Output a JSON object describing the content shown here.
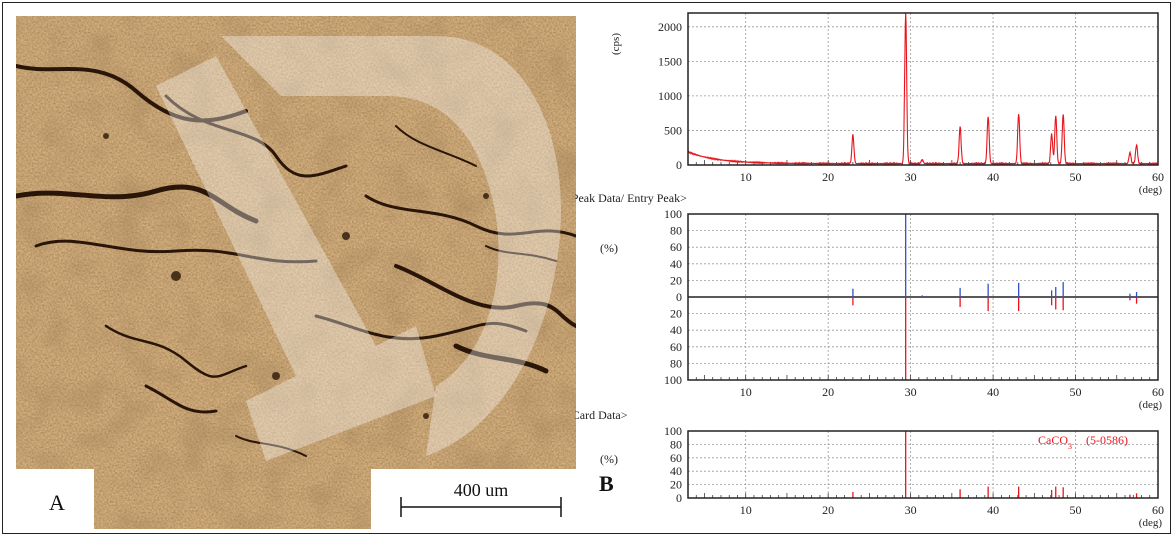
{
  "panel_a": {
    "label": "A",
    "scale_bar_label": "400 um"
  },
  "panel_b": {
    "label": "B"
  },
  "chart_data": [
    {
      "type": "line",
      "ylabel": "(cps)",
      "xlabel": "(deg)",
      "xlim": [
        3,
        60
      ],
      "ylim": [
        0,
        2200
      ],
      "x_ticks": [
        10,
        20,
        30,
        40,
        50,
        60
      ],
      "y_ticks": [
        0,
        500,
        1000,
        1500,
        2000
      ],
      "grid": true,
      "color": "#e8141c",
      "series": [
        {
          "peaks": [
            {
              "x": 23.0,
              "y": 420
            },
            {
              "x": 29.4,
              "y": 2200
            },
            {
              "x": 31.4,
              "y": 60
            },
            {
              "x": 36.0,
              "y": 540
            },
            {
              "x": 39.4,
              "y": 680
            },
            {
              "x": 43.1,
              "y": 720
            },
            {
              "x": 47.1,
              "y": 430
            },
            {
              "x": 47.6,
              "y": 690
            },
            {
              "x": 48.5,
              "y": 720
            },
            {
              "x": 56.6,
              "y": 160
            },
            {
              "x": 57.4,
              "y": 270
            }
          ]
        }
      ]
    },
    {
      "type": "bar",
      "title": "<Peak Data/ Entry Peak>",
      "ylabel": "(%)",
      "xlabel": "(deg)",
      "xlim": [
        3,
        60
      ],
      "ylim": [
        -100,
        100
      ],
      "x_ticks": [
        10,
        20,
        30,
        40,
        50,
        60
      ],
      "y_ticks": [
        100,
        80,
        60,
        40,
        20,
        0,
        20,
        40,
        60,
        80,
        100
      ],
      "grid": true,
      "series": [
        {
          "color": "#3050c8",
          "x": [
            23.0,
            29.4,
            31.4,
            36.0,
            39.4,
            43.1,
            47.1,
            47.6,
            48.5,
            56.6,
            57.4
          ],
          "values": [
            10,
            100,
            2,
            11,
            16,
            17,
            8,
            12,
            18,
            4,
            6
          ]
        },
        {
          "color": "#e8141c",
          "x": [
            23.0,
            29.4,
            36.0,
            39.4,
            43.1,
            47.1,
            47.6,
            48.5,
            56.6,
            57.4
          ],
          "values": [
            -10,
            -100,
            -12,
            -17,
            -17,
            -10,
            -15,
            -16,
            -4,
            -8
          ]
        }
      ]
    },
    {
      "type": "bar",
      "title": "<Card Data>",
      "ylabel": "(%)",
      "xlabel": "(deg)",
      "xlim": [
        3,
        60
      ],
      "ylim": [
        0,
        100
      ],
      "x_ticks": [
        10,
        20,
        30,
        40,
        50,
        60
      ],
      "y_ticks": [
        0,
        20,
        40,
        60,
        80,
        100
      ],
      "grid": true,
      "annotation": {
        "formula": "CaCO",
        "subscript": "3",
        "card": "(5-0586)",
        "color": "#e8141c"
      },
      "series": [
        {
          "color": "#e8141c",
          "x": [
            23.0,
            29.4,
            36.0,
            39.4,
            43.1,
            47.1,
            47.6,
            48.5,
            56.6,
            57.4
          ],
          "values": [
            9,
            100,
            13,
            17,
            17,
            12,
            17,
            16,
            5,
            7
          ]
        }
      ]
    }
  ]
}
